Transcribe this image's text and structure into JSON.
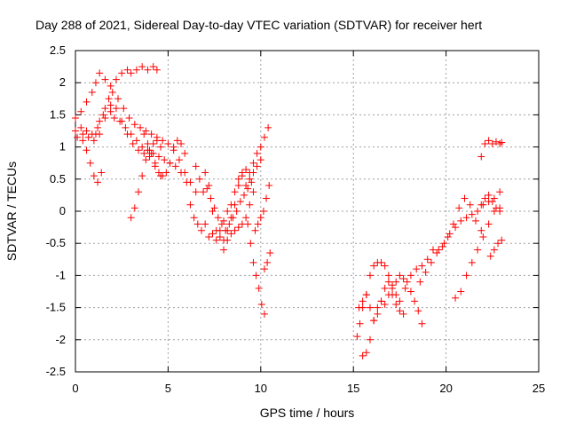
{
  "chart_data": {
    "type": "scatter",
    "title": "Day 288 of 2021, Sidereal Day-to-day VTEC variation (SDTVAR) for receiver hert",
    "xlabel": "GPS time / hours",
    "ylabel": "SDTVAR / TECUs",
    "xlim": [
      0,
      25
    ],
    "ylim": [
      -2.5,
      2.5
    ],
    "x_ticks": [
      0,
      5,
      10,
      15,
      20,
      25
    ],
    "x_tick_labels": [
      "0",
      "5",
      "10",
      "15",
      "20",
      "25"
    ],
    "y_ticks": [
      -2.5,
      -2,
      -1.5,
      -1,
      -0.5,
      0,
      0.5,
      1,
      1.5,
      2,
      2.5
    ],
    "y_tick_labels": [
      "-2.5",
      "-2",
      "-1.5",
      "-1",
      "-0.5",
      "0",
      "0.5",
      "1",
      "1.5",
      "2",
      "2.5"
    ],
    "grid": true,
    "marker": "+",
    "color": "#ff0000",
    "series": [
      {
        "x": [
          0.0,
          0.3,
          0.6,
          0.9,
          1.1,
          1.3,
          1.6,
          1.9,
          2.2,
          2.5,
          2.8,
          3.0,
          3.3,
          3.6,
          3.9,
          4.2,
          4.4
        ],
        "values": [
          1.45,
          1.55,
          1.7,
          1.85,
          2.0,
          2.15,
          2.05,
          1.95,
          2.05,
          2.15,
          2.2,
          2.15,
          2.2,
          2.25,
          2.2,
          2.25,
          2.2
        ]
      },
      {
        "x": [
          0.0,
          0.3,
          0.6,
          0.9,
          1.2,
          1.5,
          1.8,
          2.0,
          2.3,
          2.6,
          2.9,
          3.2,
          3.5,
          3.8,
          4.1,
          4.4,
          4.7,
          5.0,
          5.3,
          5.6,
          5.9,
          6.2,
          6.5
        ],
        "values": [
          1.25,
          1.3,
          1.25,
          1.2,
          1.3,
          1.5,
          1.75,
          1.85,
          1.75,
          1.6,
          1.45,
          1.35,
          1.3,
          1.25,
          1.2,
          1.15,
          1.1,
          1.05,
          1.0,
          0.8,
          0.6,
          0.45,
          0.3
        ]
      },
      {
        "x": [
          0.1,
          0.4,
          0.7,
          1.0,
          1.3,
          1.6,
          1.9,
          2.2,
          2.5,
          2.8,
          3.1,
          3.4,
          3.7,
          4.0,
          4.3,
          4.6
        ],
        "values": [
          1.15,
          1.2,
          1.15,
          1.1,
          1.2,
          1.45,
          1.65,
          1.6,
          1.4,
          1.2,
          1.05,
          0.95,
          0.9,
          0.85,
          0.7,
          0.55
        ]
      },
      {
        "x": [
          0.4,
          0.6,
          0.8,
          1.0,
          1.2,
          1.4
        ],
        "values": [
          1.1,
          0.95,
          0.75,
          0.55,
          0.45,
          0.6
        ]
      },
      {
        "x": [
          1.1,
          1.3,
          1.6,
          1.9,
          2.1,
          2.4,
          2.7,
          3.0,
          3.3,
          3.6,
          3.9,
          4.2,
          4.5,
          4.8,
          5.1,
          5.4,
          5.7,
          6.0
        ],
        "values": [
          1.2,
          1.4,
          1.6,
          1.55,
          1.45,
          1.4,
          1.3,
          1.2,
          1.1,
          1.0,
          0.95,
          0.9,
          0.85,
          0.8,
          0.75,
          0.7,
          0.6,
          0.45
        ]
      },
      {
        "x": [
          3.0,
          3.2,
          3.4,
          3.6,
          3.8,
          4.0,
          4.2,
          4.4,
          4.6
        ],
        "values": [
          -0.1,
          0.05,
          0.3,
          0.55,
          0.8,
          0.95,
          1.05,
          1.1,
          1.0
        ]
      },
      {
        "x": [
          3.7,
          3.9,
          4.1,
          4.3,
          4.5,
          4.7,
          4.9,
          5.1,
          5.3,
          5.5,
          5.7,
          5.9
        ],
        "values": [
          1.2,
          1.05,
          0.9,
          0.75,
          0.6,
          0.55,
          0.6,
          0.75,
          0.95,
          1.1,
          1.05,
          0.9
        ]
      },
      {
        "x": [
          6.2,
          6.4,
          6.6,
          6.8,
          7.0,
          7.2,
          7.4,
          7.6,
          7.8,
          8.0,
          8.2,
          8.4,
          8.6,
          8.8,
          9.0,
          9.2,
          9.4,
          9.6,
          9.8,
          10.0,
          10.2,
          10.4
        ],
        "values": [
          0.1,
          -0.1,
          -0.2,
          -0.3,
          -0.2,
          -0.4,
          -0.35,
          -0.45,
          -0.3,
          -0.15,
          0.0,
          0.1,
          0.3,
          0.5,
          0.55,
          0.4,
          0.6,
          0.75,
          0.9,
          1.0,
          1.15,
          1.3
        ]
      },
      {
        "x": [
          6.5,
          6.7,
          6.9,
          7.1,
          7.3,
          7.5,
          7.7,
          7.9,
          8.1,
          8.3,
          8.5,
          8.7,
          8.9,
          9.1,
          9.3,
          9.5
        ],
        "values": [
          0.7,
          0.5,
          0.3,
          0.35,
          0.2,
          0.05,
          -0.1,
          -0.2,
          -0.3,
          -0.2,
          -0.1,
          0.0,
          0.15,
          0.25,
          0.35,
          0.45
        ]
      },
      {
        "x": [
          7.0,
          7.2,
          7.4,
          7.6,
          7.8,
          8.0,
          8.2,
          8.4,
          8.6,
          8.8,
          9.0,
          9.2,
          9.4,
          9.6,
          9.8,
          10.0
        ],
        "values": [
          0.6,
          0.4,
          0.0,
          -0.3,
          -0.4,
          -0.45,
          -0.3,
          -0.1,
          0.1,
          0.4,
          0.6,
          0.65,
          0.5,
          0.6,
          0.7,
          0.8
        ]
      },
      {
        "x": [
          8.0,
          8.2,
          8.4,
          8.6,
          8.8,
          9.0,
          9.2,
          9.4,
          9.6
        ],
        "values": [
          -0.6,
          -0.45,
          -0.35,
          -0.3,
          -0.25,
          -0.2,
          -0.1,
          0.1,
          0.3
        ]
      },
      {
        "x": [
          9.3,
          9.45,
          9.6,
          9.75,
          9.9,
          10.05,
          10.2
        ],
        "values": [
          -0.2,
          -0.5,
          -0.8,
          -1.0,
          -1.2,
          -1.45,
          -1.6
        ]
      },
      {
        "x": [
          9.7,
          9.85,
          10.0,
          10.15,
          10.3,
          10.45
        ],
        "values": [
          -0.3,
          -0.2,
          -0.1,
          0.0,
          0.2,
          0.4
        ]
      },
      {
        "x": [
          10.2,
          10.35,
          10.5
        ],
        "values": [
          -0.9,
          -0.8,
          -0.65
        ]
      },
      {
        "x": [
          15.2,
          15.35,
          15.5,
          15.7,
          15.9,
          16.1,
          16.3,
          16.5,
          16.7,
          16.9,
          17.1,
          17.3
        ],
        "values": [
          -1.95,
          -1.75,
          -1.5,
          -1.3,
          -1.0,
          -0.85,
          -0.8,
          -0.8,
          -0.85,
          -1.0,
          -1.15,
          -1.3
        ]
      },
      {
        "x": [
          15.3,
          15.5,
          15.7,
          15.9,
          16.1,
          16.3,
          16.5,
          16.7,
          16.9,
          17.1,
          17.3,
          17.5,
          17.7
        ],
        "values": [
          -1.5,
          -1.4,
          -1.3,
          -1.5,
          -1.7,
          -1.6,
          -1.4,
          -1.2,
          -1.1,
          -1.3,
          -1.45,
          -1.55,
          -1.6
        ]
      },
      {
        "x": [
          15.5,
          15.7,
          15.9,
          16.1,
          16.3,
          16.5,
          16.7,
          16.9,
          17.1,
          17.3,
          17.5,
          17.7,
          17.9,
          18.1,
          18.3,
          18.5,
          18.7
        ],
        "values": [
          -2.25,
          -2.2,
          -2.0,
          -1.7,
          -1.5,
          -1.4,
          -1.45,
          -1.3,
          -1.2,
          -1.1,
          -1.0,
          -1.05,
          -1.1,
          -1.25,
          -1.4,
          -1.55,
          -1.75
        ]
      },
      {
        "x": [
          17.5,
          17.8,
          18.1,
          18.4,
          18.7,
          19.0,
          19.3,
          19.6,
          19.9,
          20.2,
          20.5,
          20.8,
          21.1,
          21.4,
          21.7,
          22.0,
          22.3,
          22.6,
          22.9
        ],
        "values": [
          -1.4,
          -1.2,
          -1.0,
          -0.9,
          -0.85,
          -0.75,
          -0.6,
          -0.6,
          -0.5,
          -0.35,
          -0.25,
          -0.15,
          -0.1,
          -0.05,
          0.0,
          0.1,
          0.15,
          0.2,
          0.3
        ]
      },
      {
        "x": [
          18.6,
          18.9,
          19.2,
          19.5,
          19.8,
          20.1,
          20.4,
          20.7,
          21.0,
          21.3,
          21.6,
          21.9
        ],
        "values": [
          -1.1,
          -0.95,
          -0.8,
          -0.65,
          -0.55,
          -0.4,
          -0.2,
          0.05,
          0.2,
          0.1,
          -0.15,
          -0.3
        ]
      },
      {
        "x": [
          20.5,
          20.8,
          21.1,
          21.4,
          21.7,
          22.0,
          22.3,
          22.6,
          22.9
        ],
        "values": [
          -1.35,
          -1.25,
          -1.0,
          -0.8,
          -0.6,
          -0.4,
          -0.2,
          0.0,
          0.05
        ]
      },
      {
        "x": [
          21.9,
          22.1,
          22.3,
          22.5,
          22.7,
          22.9
        ],
        "values": [
          0.1,
          0.2,
          0.25,
          0.15,
          0.05,
          0.0
        ]
      },
      {
        "x": [
          22.4,
          22.6,
          22.8,
          23.0
        ],
        "values": [
          -0.7,
          -0.6,
          -0.5,
          -0.45
        ]
      },
      {
        "x": [
          21.9,
          22.1,
          22.3,
          22.5,
          22.7,
          22.9,
          23.0
        ],
        "values": [
          0.85,
          1.05,
          1.1,
          1.05,
          1.08,
          1.05,
          1.07
        ]
      }
    ]
  }
}
